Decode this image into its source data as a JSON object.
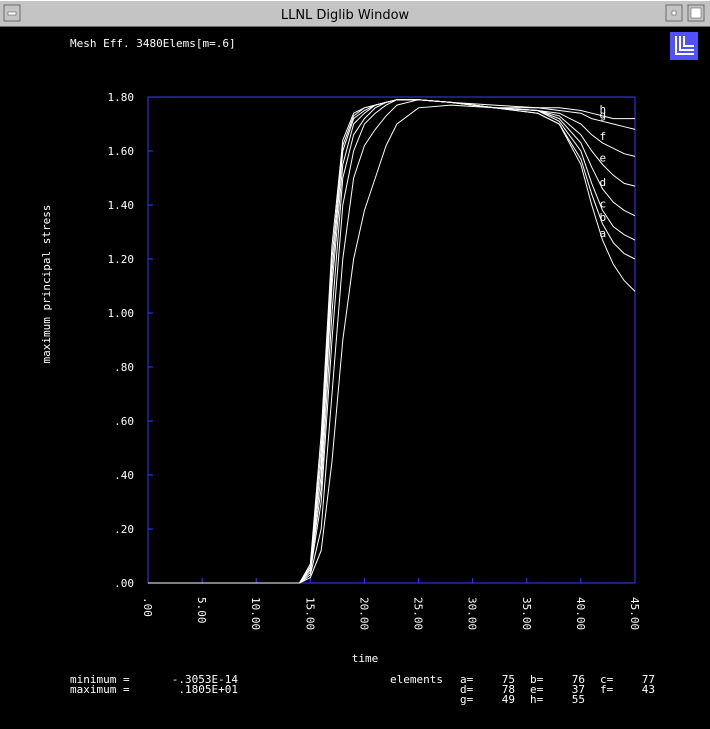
{
  "window_title": "LLNL Diglib Window",
  "chart_data": {
    "type": "line",
    "title": "Mesh Eff. 3480Elems[m=.6]",
    "x_label": "time",
    "y_label": "maximum principal stress",
    "xlim": [
      0,
      45
    ],
    "ylim": [
      0,
      1.8
    ],
    "xticks": [
      {
        "value": 0,
        "label": ".00"
      },
      {
        "value": 5,
        "label": "5.00"
      },
      {
        "value": 10,
        "label": "10.00"
      },
      {
        "value": 15,
        "label": "15.00"
      },
      {
        "value": 20,
        "label": "20.00"
      },
      {
        "value": 25,
        "label": "25.00"
      },
      {
        "value": 30,
        "label": "30.00"
      },
      {
        "value": 35,
        "label": "35.00"
      },
      {
        "value": 40,
        "label": "40.00"
      },
      {
        "value": 45,
        "label": "45.00"
      }
    ],
    "yticks": [
      {
        "value": 0,
        "label": ".00"
      },
      {
        "value": 0.2,
        "label": ".20"
      },
      {
        "value": 0.4,
        "label": ".40"
      },
      {
        "value": 0.6,
        "label": ".60"
      },
      {
        "value": 0.8,
        "label": ".80"
      },
      {
        "value": 1,
        "label": "1.00"
      },
      {
        "value": 1.2,
        "label": "1.20"
      },
      {
        "value": 1.4,
        "label": "1.40"
      },
      {
        "value": 1.6,
        "label": "1.60"
      },
      {
        "value": 1.8,
        "label": "1.80"
      }
    ],
    "frame_color": "#3a3aff",
    "x": [
      0,
      14,
      15,
      16,
      17,
      18,
      19,
      20,
      21,
      22,
      23,
      25,
      28,
      32,
      36,
      38,
      40,
      41,
      42,
      43,
      44,
      45
    ],
    "series": [
      {
        "name": "a",
        "color": "#ffffff",
        "values": [
          0,
          0,
          0.02,
          0.12,
          0.45,
          0.9,
          1.2,
          1.38,
          1.5,
          1.62,
          1.7,
          1.76,
          1.77,
          1.76,
          1.74,
          1.7,
          1.55,
          1.4,
          1.27,
          1.18,
          1.12,
          1.08
        ]
      },
      {
        "name": "b",
        "color": "#ffffff",
        "values": [
          0,
          0,
          0.03,
          0.2,
          0.7,
          1.2,
          1.5,
          1.62,
          1.68,
          1.73,
          1.77,
          1.79,
          1.78,
          1.76,
          1.74,
          1.7,
          1.57,
          1.44,
          1.33,
          1.26,
          1.22,
          1.2
        ]
      },
      {
        "name": "c",
        "color": "#ffffff",
        "values": [
          0,
          0,
          0.04,
          0.3,
          0.9,
          1.4,
          1.6,
          1.7,
          1.74,
          1.77,
          1.79,
          1.79,
          1.78,
          1.76,
          1.75,
          1.71,
          1.6,
          1.48,
          1.38,
          1.32,
          1.29,
          1.27
        ]
      },
      {
        "name": "d",
        "color": "#ffffff",
        "values": [
          0,
          0,
          0.05,
          0.35,
          1.0,
          1.5,
          1.66,
          1.72,
          1.76,
          1.78,
          1.79,
          1.79,
          1.78,
          1.76,
          1.75,
          1.72,
          1.63,
          1.54,
          1.46,
          1.41,
          1.38,
          1.36
        ]
      },
      {
        "name": "e",
        "color": "#ffffff",
        "values": [
          0,
          0,
          0.05,
          0.4,
          1.1,
          1.55,
          1.7,
          1.74,
          1.77,
          1.78,
          1.79,
          1.79,
          1.78,
          1.76,
          1.75,
          1.73,
          1.66,
          1.6,
          1.55,
          1.51,
          1.48,
          1.47
        ]
      },
      {
        "name": "f",
        "color": "#ffffff",
        "values": [
          0,
          0,
          0.06,
          0.45,
          1.15,
          1.6,
          1.72,
          1.75,
          1.77,
          1.78,
          1.79,
          1.79,
          1.78,
          1.76,
          1.75,
          1.74,
          1.7,
          1.66,
          1.63,
          1.61,
          1.59,
          1.58
        ]
      },
      {
        "name": "g",
        "color": "#ffffff",
        "values": [
          0,
          0,
          0.06,
          0.5,
          1.2,
          1.62,
          1.73,
          1.76,
          1.77,
          1.78,
          1.79,
          1.79,
          1.78,
          1.76,
          1.76,
          1.75,
          1.74,
          1.72,
          1.71,
          1.7,
          1.69,
          1.68
        ]
      },
      {
        "name": "h",
        "color": "#ffffff",
        "values": [
          0,
          0,
          0.07,
          0.55,
          1.25,
          1.64,
          1.74,
          1.76,
          1.77,
          1.78,
          1.79,
          1.79,
          1.78,
          1.77,
          1.76,
          1.76,
          1.75,
          1.74,
          1.73,
          1.72,
          1.72,
          1.72
        ]
      }
    ]
  },
  "footer": {
    "stats": [
      {
        "label": "minimum =",
        "value": "-.3053E-14"
      },
      {
        "label": "maximum =",
        "value": ".1805E+01"
      }
    ],
    "elements_label": "elements",
    "elements": [
      {
        "key": "a=",
        "count": 75
      },
      {
        "key": "b=",
        "count": 76
      },
      {
        "key": "c=",
        "count": 77
      },
      {
        "key": "d=",
        "count": 78
      },
      {
        "key": "e=",
        "count": 37
      },
      {
        "key": "f=",
        "count": 43
      },
      {
        "key": "g=",
        "count": 49
      },
      {
        "key": "h=",
        "count": 55
      }
    ]
  }
}
